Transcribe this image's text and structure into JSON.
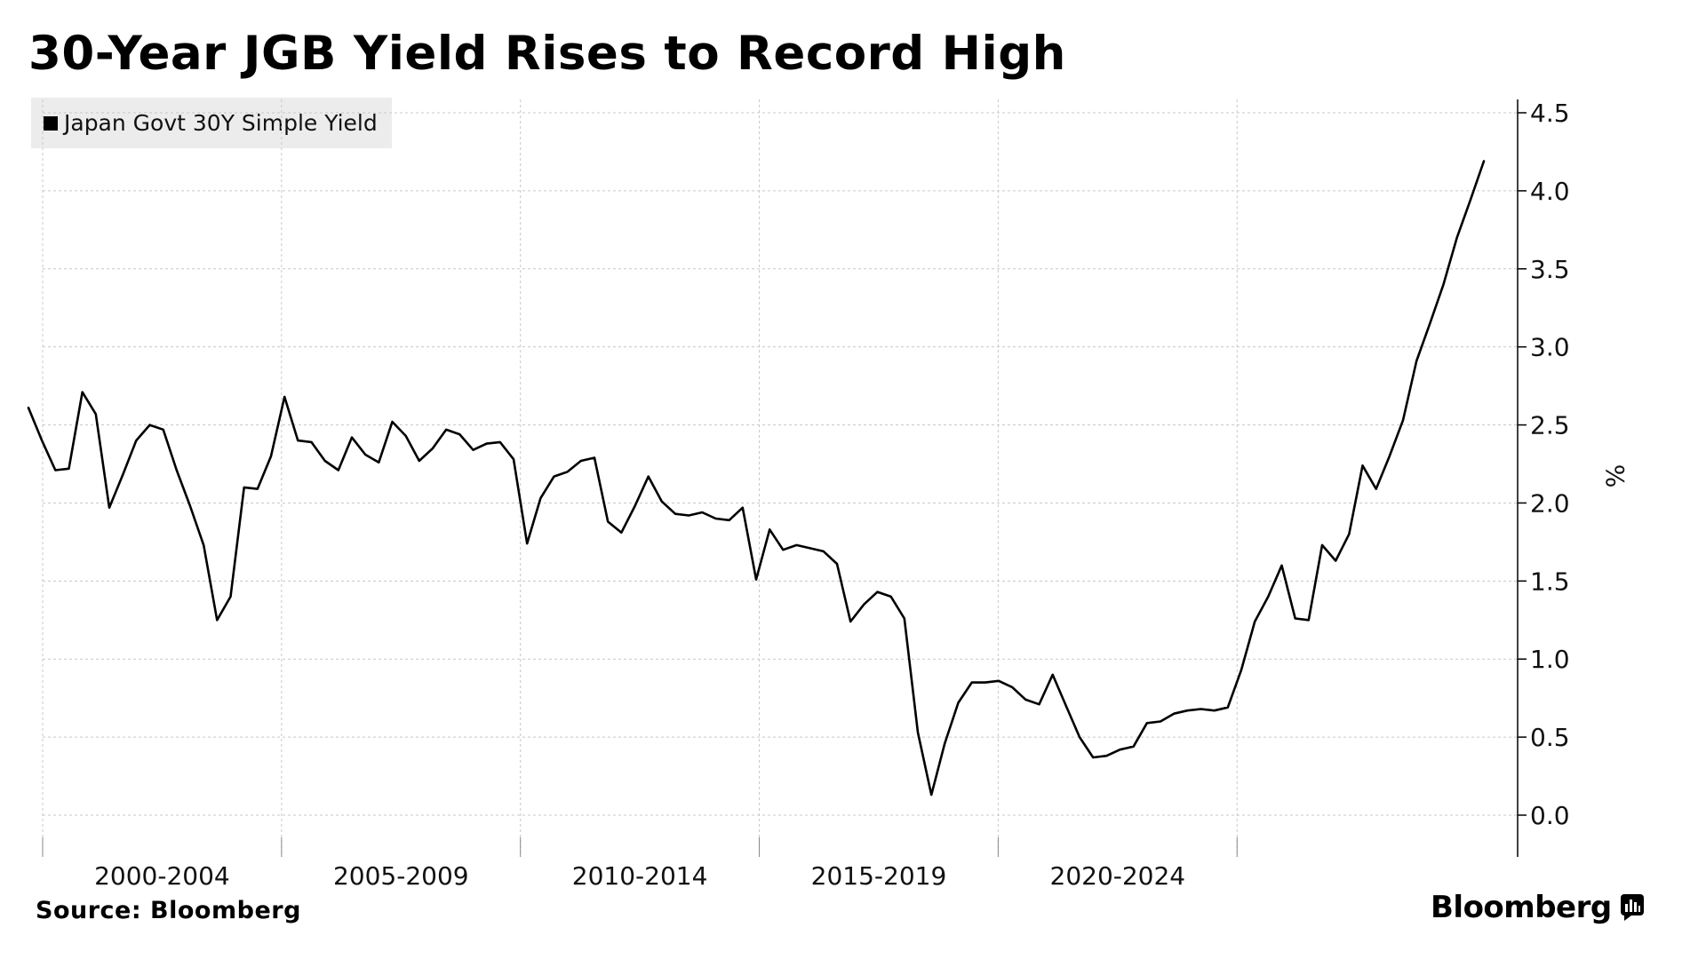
{
  "title": "30-Year JGB Yield Rises to Record High",
  "source": "Source: Bloomberg",
  "brand": "Bloomberg",
  "chart_data": {
    "type": "line",
    "title": "30-Year JGB Yield Rises to Record High",
    "ylabel": "%",
    "ylim": [
      -0.25,
      4.6
    ],
    "yticks": [
      0.0,
      0.5,
      1.0,
      1.5,
      2.0,
      2.5,
      3.0,
      3.5,
      4.0,
      4.5
    ],
    "ytick_labels": [
      "0.0",
      "0.5",
      "1.0",
      "1.5",
      "2.0",
      "2.5",
      "3.0",
      "3.5",
      "4.0",
      "4.5"
    ],
    "x_range": [
      0,
      113
    ],
    "x_group_labels": [
      "2000-2004",
      "2005-2009",
      "2010-2014",
      "2015-2019",
      "2020-2024"
    ],
    "x_group_boundaries": [
      20,
      40,
      60,
      80,
      100
    ],
    "grid": true,
    "legend_position": "top-left",
    "series": [
      {
        "name": "Japan Govt 30Y Simple Yield",
        "color": "#000000",
        "values": [
          2.61,
          2.4,
          2.21,
          2.22,
          2.71,
          2.57,
          1.97,
          2.18,
          2.4,
          2.5,
          2.47,
          2.21,
          1.98,
          1.73,
          1.25,
          1.4,
          2.1,
          2.09,
          2.3,
          2.68,
          2.4,
          2.39,
          2.27,
          2.21,
          2.42,
          2.31,
          2.26,
          2.52,
          2.43,
          2.27,
          2.35,
          2.47,
          2.44,
          2.34,
          2.38,
          2.39,
          2.28,
          1.74,
          2.03,
          2.17,
          2.2,
          2.27,
          2.29,
          1.88,
          1.81,
          1.98,
          2.17,
          2.01,
          1.93,
          1.92,
          1.94,
          1.9,
          1.89,
          1.97,
          1.51,
          1.83,
          1.7,
          1.73,
          1.71,
          1.69,
          1.61,
          1.24,
          1.35,
          1.43,
          1.4,
          1.26,
          0.53,
          0.13,
          0.46,
          0.72,
          0.85,
          0.85,
          0.86,
          0.82,
          0.74,
          0.71,
          0.9,
          0.7,
          0.5,
          0.37,
          0.38,
          0.42,
          0.44,
          0.59,
          0.6,
          0.65,
          0.67,
          0.68,
          0.67,
          0.69,
          0.93,
          1.24,
          1.4,
          1.6,
          1.26,
          1.25,
          1.73,
          1.63,
          1.8,
          2.24,
          2.09,
          2.3,
          2.53,
          2.91,
          3.15,
          3.4,
          3.7,
          3.94,
          4.19
        ]
      }
    ]
  }
}
